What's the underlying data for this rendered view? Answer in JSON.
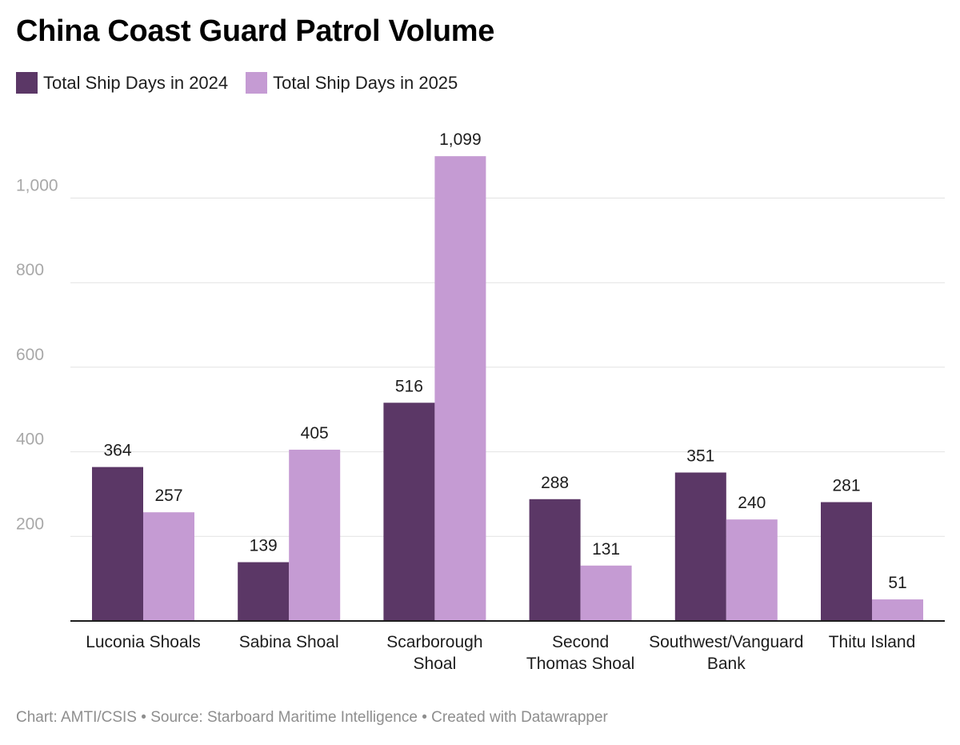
{
  "title": "China Coast Guard Patrol Volume",
  "footer": {
    "credit": "Chart: AMTI/CSIS",
    "separator": " • ",
    "source": "Source: Starboard Maritime Intelligence",
    "created": "Created with Datawrapper"
  },
  "colors": {
    "series_2024": "#5b3766",
    "series_2025": "#c59bd3",
    "grid": "#e2e2e2",
    "axis": "#1d1d1d",
    "tick_text": "#a8a8a8"
  },
  "chart_data": {
    "type": "bar",
    "title": "China Coast Guard Patrol Volume",
    "categories": [
      [
        "Luconia Shoals"
      ],
      [
        "Sabina Shoal"
      ],
      [
        "Scarborough",
        "Shoal"
      ],
      [
        "Second",
        "Thomas Shoal"
      ],
      [
        "Southwest/Vanguard",
        "Bank"
      ],
      [
        "Thitu Island"
      ]
    ],
    "series": [
      {
        "name": "Total Ship Days in 2024",
        "values": [
          364,
          139,
          516,
          288,
          351,
          281
        ]
      },
      {
        "name": "Total Ship Days in 2025",
        "values": [
          257,
          405,
          1099,
          131,
          240,
          51
        ]
      }
    ],
    "yticks": [
      200,
      400,
      600,
      800,
      1000
    ],
    "ytick_labels": [
      "200",
      "400",
      "600",
      "800",
      "1,000"
    ],
    "value_labels": [
      [
        "364",
        "139",
        "516",
        "288",
        "351",
        "281"
      ],
      [
        "257",
        "405",
        "1,099",
        "131",
        "240",
        "51"
      ]
    ],
    "ylim": [
      0,
      1100
    ],
    "xlabel": "",
    "ylabel": "",
    "grid": true,
    "legend": "top-left"
  }
}
